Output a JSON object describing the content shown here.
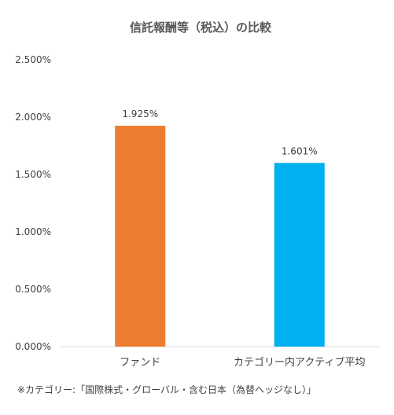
{
  "chart_data": {
    "type": "bar",
    "title": "信託報酬等（税込）の比較",
    "xlabel": "",
    "ylabel": "",
    "categories": [
      "ファンド",
      "カテゴリー内アクティブ平均"
    ],
    "values": [
      1.925,
      1.601
    ],
    "data_labels": [
      "1.925%",
      "1.601%"
    ],
    "colors": [
      "#ED7D31",
      "#00B0F0"
    ],
    "ylim": [
      0,
      2.5
    ],
    "yticks": [
      0,
      0.5,
      1,
      1.5,
      2,
      2.5
    ],
    "ytick_labels": [
      "0.000%",
      "0.500%",
      "1.000%",
      "1.500%",
      "2.000%",
      "2.500%"
    ],
    "grid": false,
    "legend": "none"
  },
  "footnote": "※カテゴリー:「国際株式・グローバル・含む日本（為替ヘッジなし）」"
}
